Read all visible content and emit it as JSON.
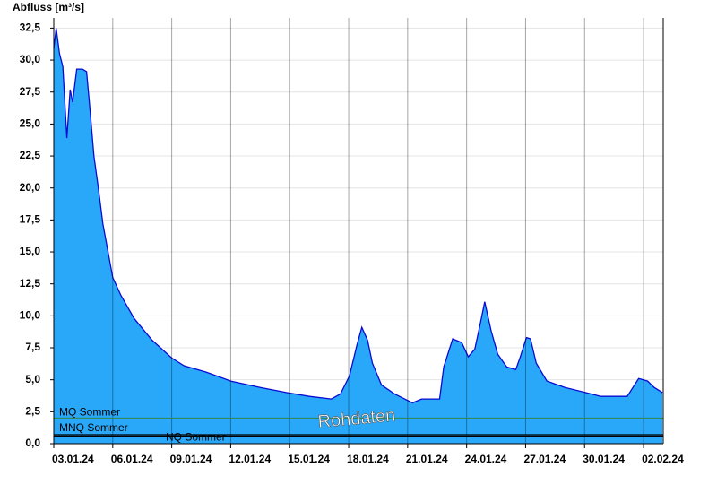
{
  "chart_data": {
    "type": "area",
    "y_axis_label": "Abfluss [m³/s]",
    "annotation": "Rohdaten",
    "series": [
      {
        "color": "#29a8fa",
        "line_color": "#0a0ad2",
        "x": [
          "2024-01-03T00:00",
          "2024-01-03T03:00",
          "2024-01-03T07:00",
          "2024-01-03T11:00",
          "2024-01-03T16:00",
          "2024-01-03T20:00",
          "2024-01-03T23:00",
          "2024-01-04T04:00",
          "2024-01-04T11:00",
          "2024-01-04T16:00",
          "2024-01-04T20:00",
          "2024-01-05T01:00",
          "2024-01-05T07:00",
          "2024-01-05T12:00",
          "2024-01-05T18:00",
          "2024-01-06T00:00",
          "2024-01-06T10:00",
          "2024-01-07T02:00",
          "2024-01-08T00:00",
          "2024-01-09T00:00",
          "2024-01-09T15:00",
          "2024-01-10T18:00",
          "2024-01-12T00:00",
          "2024-01-13T12:00",
          "2024-01-14T20:00",
          "2024-01-16T00:00",
          "2024-01-17T03:00",
          "2024-01-17T14:00",
          "2024-01-18T01:00",
          "2024-01-18T10:00",
          "2024-01-18T16:00",
          "2024-01-18T23:00",
          "2024-01-19T05:00",
          "2024-01-19T16:00",
          "2024-01-20T08:00",
          "2024-01-21T06:00",
          "2024-01-21T17:00",
          "2024-01-22T15:00",
          "2024-01-22T20:00",
          "2024-01-23T07:00",
          "2024-01-23T18:00",
          "2024-01-24T02:00",
          "2024-01-24T10:00",
          "2024-01-24T17:00",
          "2024-01-24T22:00",
          "2024-01-25T06:00",
          "2024-01-25T14:00",
          "2024-01-26T01:00",
          "2024-01-26T12:00",
          "2024-01-26T17:00",
          "2024-01-27T01:00",
          "2024-01-27T06:00",
          "2024-01-27T13:00",
          "2024-01-28T02:00",
          "2024-01-29T00:00",
          "2024-01-30T01:00",
          "2024-01-30T20:00",
          "2024-02-01T04:00",
          "2024-02-01T11:00",
          "2024-02-01T18:00",
          "2024-02-02T05:00",
          "2024-02-02T13:00",
          "2024-02-02T23:00"
        ],
        "values": [
          30.9,
          32.5,
          30.5,
          29.5,
          23.9,
          27.7,
          26.7,
          29.3,
          29.3,
          29.1,
          26.3,
          22.5,
          19.7,
          17.2,
          15.1,
          13.0,
          11.6,
          9.8,
          8.1,
          6.7,
          6.1,
          5.6,
          4.9,
          4.4,
          4.0,
          3.7,
          3.5,
          3.9,
          5.3,
          7.7,
          9.1,
          8.1,
          6.3,
          4.6,
          3.9,
          3.2,
          3.5,
          3.5,
          6.0,
          8.2,
          7.9,
          6.8,
          7.4,
          9.5,
          11.1,
          8.8,
          7.0,
          6.0,
          5.8,
          6.7,
          8.3,
          8.2,
          6.3,
          4.9,
          4.4,
          4.0,
          3.7,
          3.7,
          4.4,
          5.1,
          4.9,
          4.4,
          4.0
        ]
      }
    ],
    "reference_lines": [
      {
        "name": "MQ Sommer",
        "value": 2.0,
        "color": "#2e8b57"
      },
      {
        "name": "MNQ Sommer",
        "value": 0.7,
        "color": "#000000"
      },
      {
        "name": "NQ Sommer",
        "value": 0.6,
        "color": "#000000"
      }
    ],
    "xlim": [
      "2024-01-03T00:00",
      "2024-02-03T00:00"
    ],
    "xticks": [
      {
        "value": "2024-01-03T00:00",
        "label": "03.01.24"
      },
      {
        "value": "2024-01-06T00:00",
        "label": "06.01.24"
      },
      {
        "value": "2024-01-09T00:00",
        "label": "09.01.24"
      },
      {
        "value": "2024-01-12T00:00",
        "label": "12.01.24"
      },
      {
        "value": "2024-01-15T00:00",
        "label": "15.01.24"
      },
      {
        "value": "2024-01-18T00:00",
        "label": "18.01.24"
      },
      {
        "value": "2024-01-21T00:00",
        "label": "21.01.24"
      },
      {
        "value": "2024-01-24T00:00",
        "label": "24.01.24"
      },
      {
        "value": "2024-01-27T00:00",
        "label": "27.01.24"
      },
      {
        "value": "2024-01-30T00:00",
        "label": "30.01.24"
      },
      {
        "value": "2024-02-02T00:00",
        "label": "02.02.24"
      }
    ],
    "ylim": [
      0,
      33.3
    ],
    "yticks": [
      {
        "value": 0,
        "label": "0,0"
      },
      {
        "value": 2.5,
        "label": "2,5"
      },
      {
        "value": 5,
        "label": "5,0"
      },
      {
        "value": 7.5,
        "label": "7,5"
      },
      {
        "value": 10,
        "label": "10,0"
      },
      {
        "value": 12.5,
        "label": "12,5"
      },
      {
        "value": 15,
        "label": "15,0"
      },
      {
        "value": 17.5,
        "label": "17,5"
      },
      {
        "value": 20,
        "label": "20,0"
      },
      {
        "value": 22.5,
        "label": "22,5"
      },
      {
        "value": 25,
        "label": "25,0"
      },
      {
        "value": 27.5,
        "label": "27,5"
      },
      {
        "value": 30,
        "label": "30,0"
      },
      {
        "value": 32.5,
        "label": "32,5"
      }
    ],
    "grid": true
  }
}
